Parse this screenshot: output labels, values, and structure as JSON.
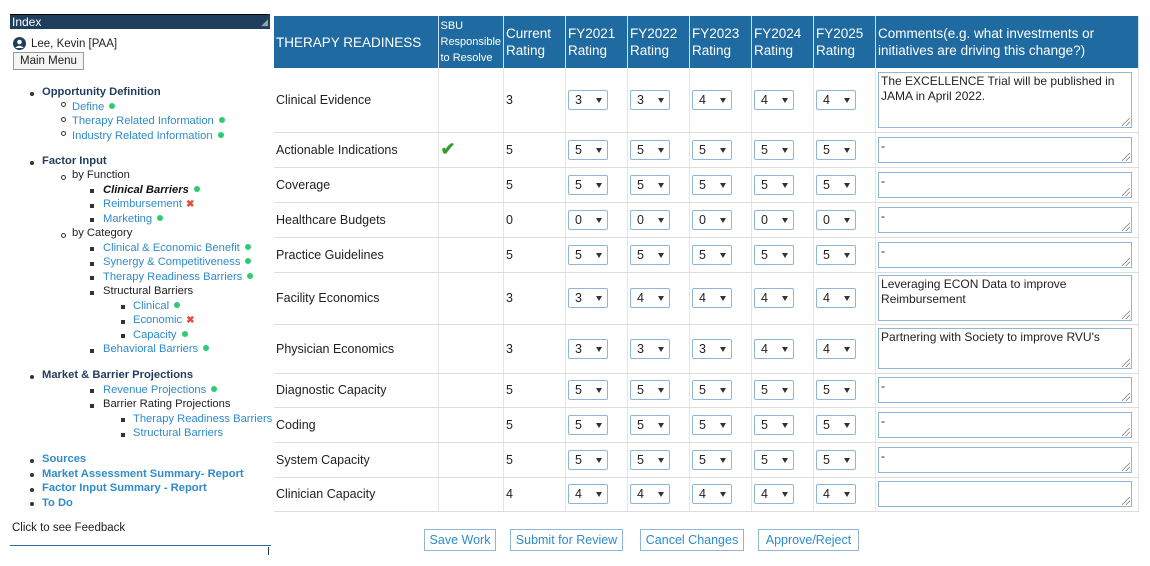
{
  "sidebar": {
    "index_title": "Index",
    "user_name": "Lee, Kevin [PAA]",
    "main_menu": "Main Menu",
    "opportunity": "Opportunity Definition",
    "define": "Define",
    "therapy_info": "Therapy Related Information",
    "industry_info": "Industry Related Information",
    "factor_input": "Factor Input",
    "by_function": "by Function",
    "clinical_barriers": "Clinical Barriers",
    "reimbursement": "Reimbursement",
    "marketing": "Marketing",
    "by_category": "by Category",
    "clin_econ": "Clinical & Economic Benefit",
    "synergy": "Synergy & Competitiveness",
    "therapy_barriers": "Therapy Readiness Barriers",
    "structural": "Structural Barriers",
    "clinical": "Clinical",
    "economic": "Economic",
    "capacity": "Capacity",
    "behavioral": "Behavioral Barriers",
    "market_proj": "Market & Barrier Projections",
    "revenue": "Revenue Projections",
    "barrier_rating": "Barrier Rating Projections",
    "tr_barriers": "Therapy Readiness Barriers",
    "struct_barriers": "Structural Barriers",
    "sources": "Sources",
    "mas_report": "Market Assessment Summary- Report",
    "fis_report": "Factor Input Summary - Report",
    "todo": "To Do",
    "feedback": "Click to see Feedback"
  },
  "table": {
    "headers": {
      "title": "THERAPY READINESS",
      "sbu": "SBU Responsible to Resolve",
      "current": "Current Rating",
      "fy2021": "FY2021 Rating",
      "fy2022": "FY2022 Rating",
      "fy2023": "FY2023 Rating",
      "fy2024": "FY2024 Rating",
      "fy2025": "FY2025 Rating",
      "comments": "Comments(e.g. what investments or initiatives are driving this change?)"
    },
    "rows": [
      {
        "label": "Clinical Evidence",
        "current": "3",
        "r": [
          "3",
          "3",
          "4",
          "4",
          "4"
        ],
        "comment": "The EXCELLENCE Trial will be published in JAMA in April 2022."
      },
      {
        "label": "Actionable Indications",
        "current": "5",
        "r": [
          "5",
          "5",
          "5",
          "5",
          "5"
        ],
        "comment": "-"
      },
      {
        "label": "Coverage",
        "current": "5",
        "r": [
          "5",
          "5",
          "5",
          "5",
          "5"
        ],
        "comment": "-"
      },
      {
        "label": "Healthcare Budgets",
        "current": "0",
        "r": [
          "0",
          "0",
          "0",
          "0",
          "0"
        ],
        "comment": "-"
      },
      {
        "label": "Practice Guidelines",
        "current": "5",
        "r": [
          "5",
          "5",
          "5",
          "5",
          "5"
        ],
        "comment": "-"
      },
      {
        "label": "Facility Economics",
        "current": "3",
        "r": [
          "3",
          "4",
          "4",
          "4",
          "4"
        ],
        "comment": "Leveraging ECON Data to improve Reimbursement"
      },
      {
        "label": "Physician Economics",
        "current": "3",
        "r": [
          "3",
          "3",
          "3",
          "4",
          "4"
        ],
        "comment": "Partnering with Society to improve RVU's"
      },
      {
        "label": "Diagnostic Capacity",
        "current": "5",
        "r": [
          "5",
          "5",
          "5",
          "5",
          "5"
        ],
        "comment": "-"
      },
      {
        "label": "Coding",
        "current": "5",
        "r": [
          "5",
          "5",
          "5",
          "5",
          "5"
        ],
        "comment": "-"
      },
      {
        "label": "System Capacity",
        "current": "5",
        "r": [
          "5",
          "5",
          "5",
          "5",
          "5"
        ],
        "comment": "-"
      },
      {
        "label": "Clinician Capacity",
        "current": "4",
        "r": [
          "4",
          "4",
          "4",
          "4",
          "4"
        ],
        "comment": ""
      }
    ]
  },
  "buttons": {
    "save": "Save Work",
    "submit": "Submit for Review",
    "cancel": "Cancel Changes",
    "approve": "Approve/Reject"
  }
}
